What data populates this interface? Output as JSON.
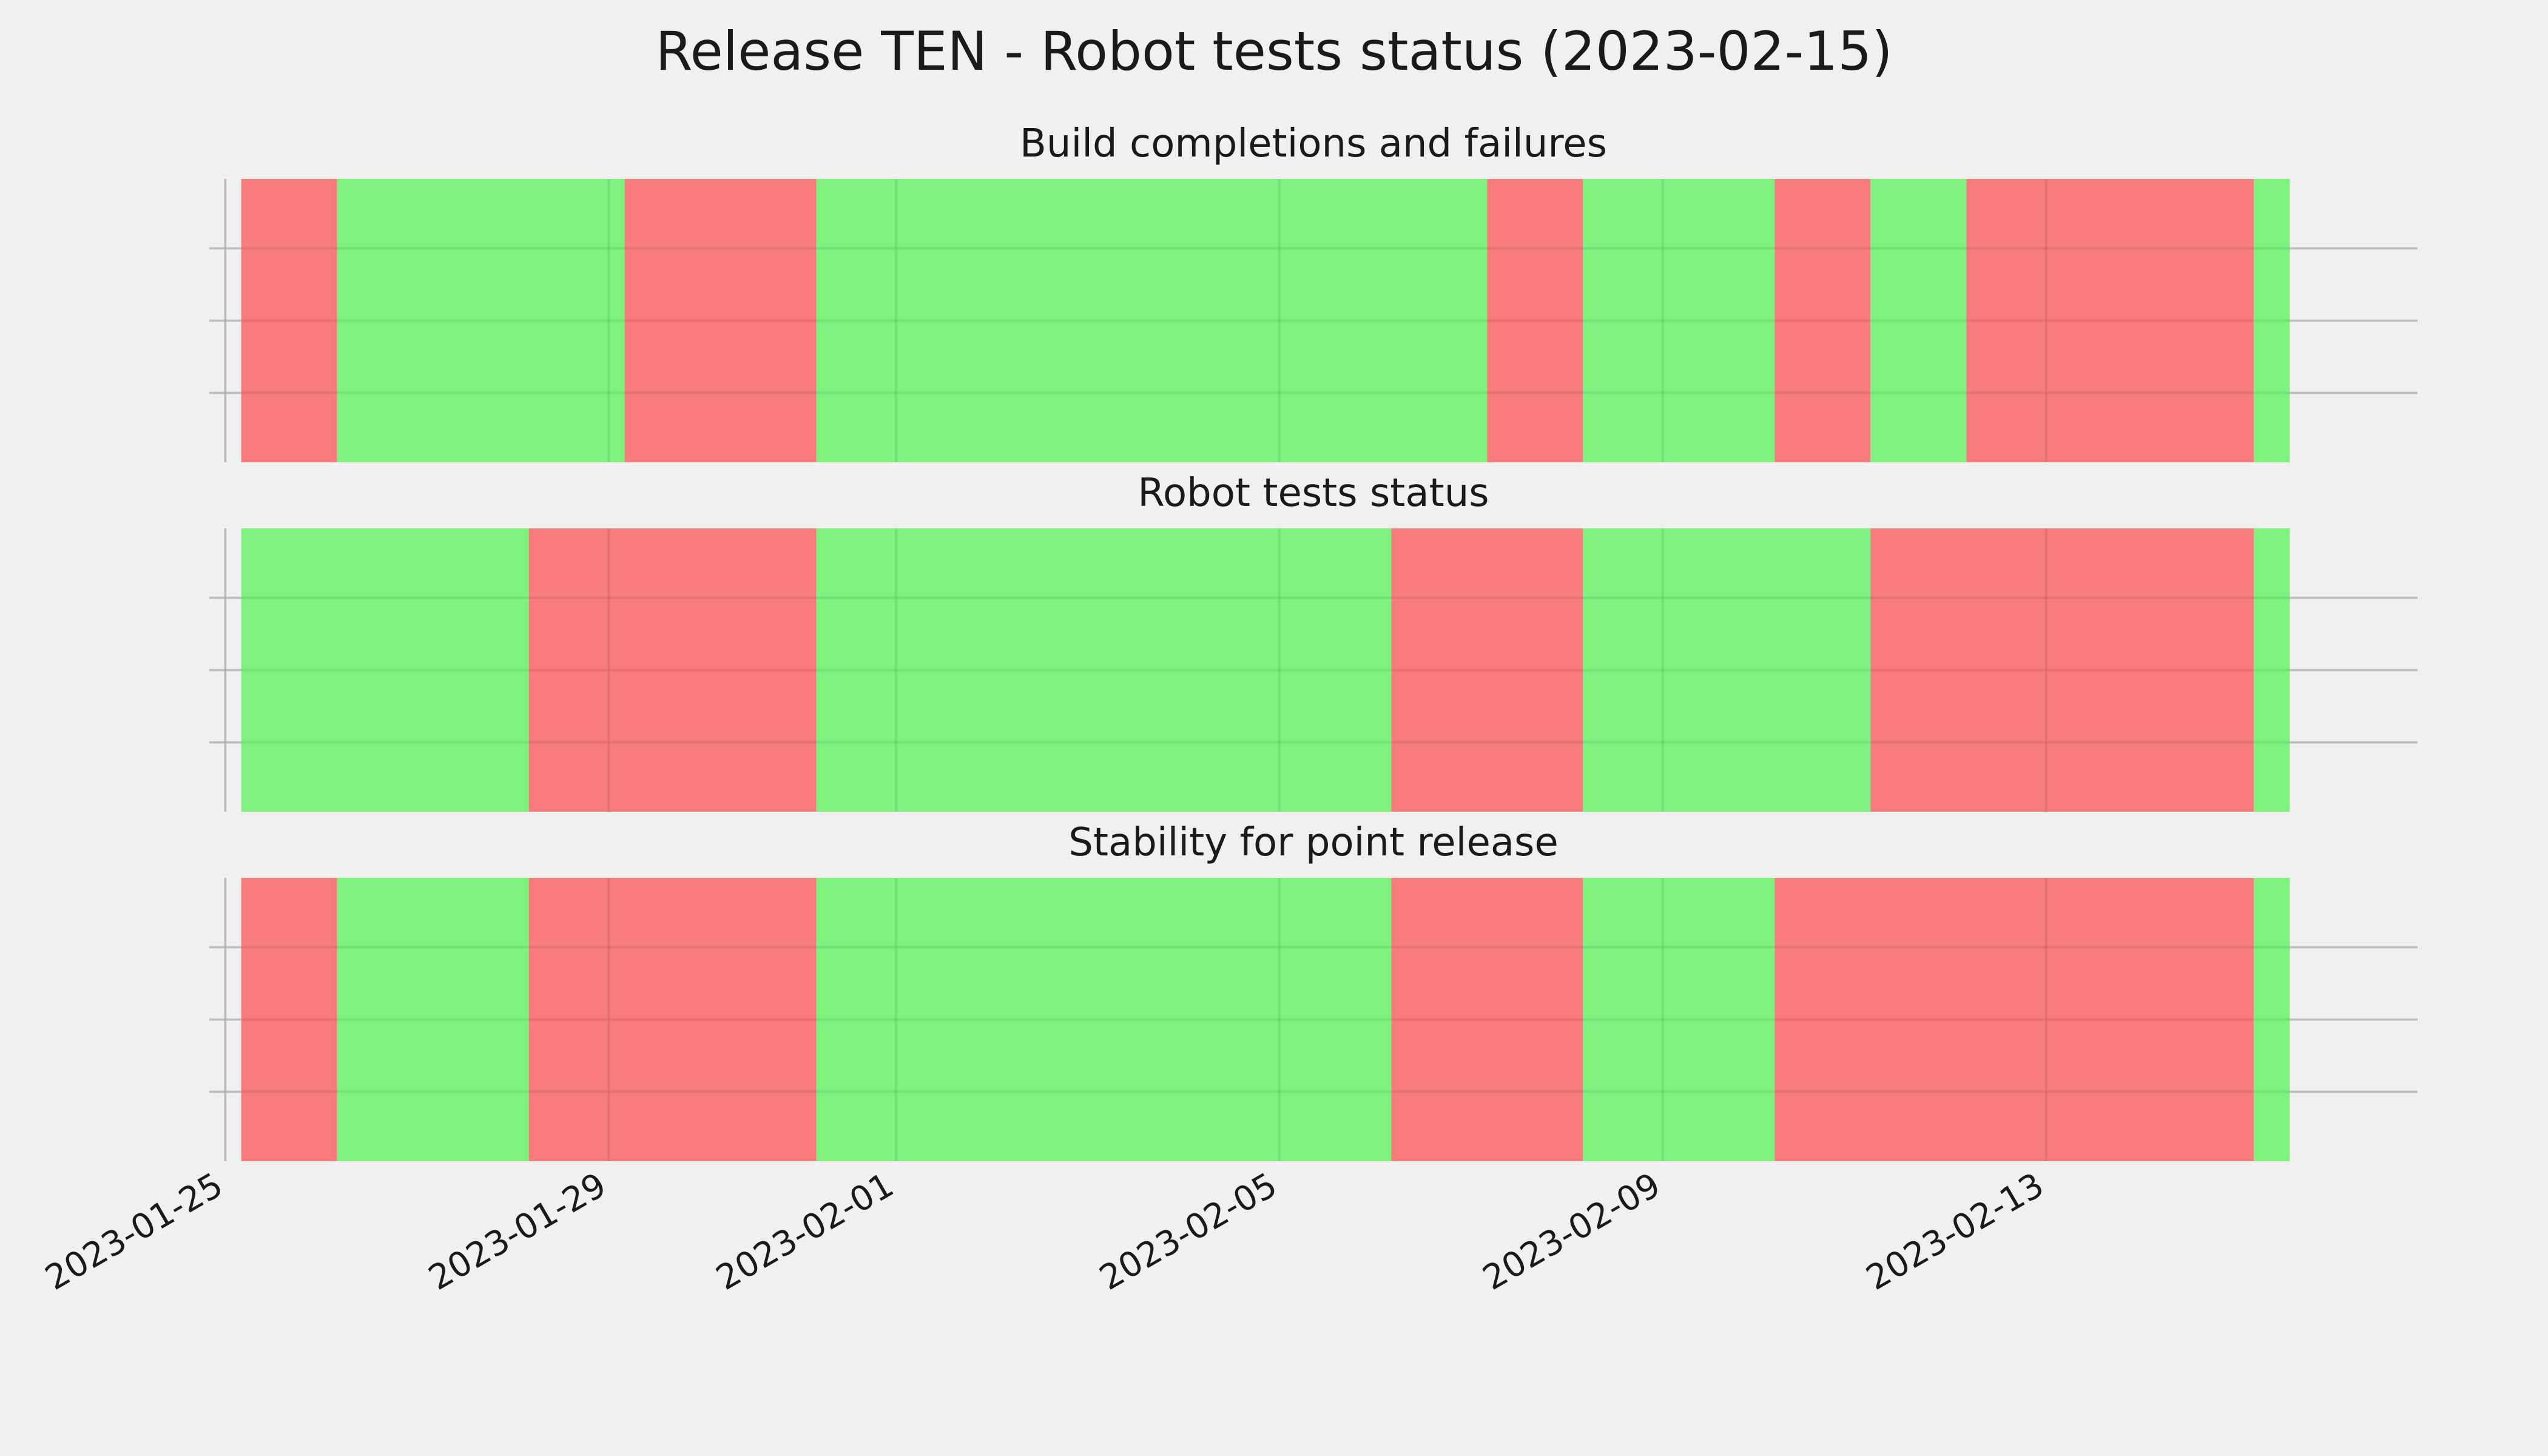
{
  "chart_data": {
    "type": "timeline",
    "title": "Release TEN - Robot tests status (2023-02-15)",
    "x_range": [
      "2023-01-24T20:00",
      "2023-02-16T21:00"
    ],
    "x_ticks": [
      "2023-01-25",
      "2023-01-29",
      "2023-02-01",
      "2023-02-05",
      "2023-02-09",
      "2023-02-13"
    ],
    "colors": {
      "pass": "#77f077",
      "fail": "#f87575",
      "background": "#f0f0f0",
      "grid": "#c9c9c9"
    },
    "grid": true,
    "panels": [
      {
        "title": "Build completions and failures",
        "segments": [
          {
            "start": "2023-01-25T04:00",
            "end": "2023-01-26T04:00",
            "status": "fail"
          },
          {
            "start": "2023-01-26T04:00",
            "end": "2023-01-29T04:00",
            "status": "pass"
          },
          {
            "start": "2023-01-29T04:00",
            "end": "2023-01-31T04:00",
            "status": "fail"
          },
          {
            "start": "2023-01-31T04:00",
            "end": "2023-02-07T04:00",
            "status": "pass"
          },
          {
            "start": "2023-02-07T04:00",
            "end": "2023-02-08T04:00",
            "status": "fail"
          },
          {
            "start": "2023-02-08T04:00",
            "end": "2023-02-10T04:00",
            "status": "pass"
          },
          {
            "start": "2023-02-10T04:00",
            "end": "2023-02-11T04:00",
            "status": "fail"
          },
          {
            "start": "2023-02-11T04:00",
            "end": "2023-02-12T04:00",
            "status": "pass"
          },
          {
            "start": "2023-02-12T04:00",
            "end": "2023-02-15T04:00",
            "status": "fail"
          },
          {
            "start": "2023-02-15T04:00",
            "end": "2023-02-15T13:00",
            "status": "pass"
          }
        ]
      },
      {
        "title": "Robot tests status",
        "segments": [
          {
            "start": "2023-01-25T04:00",
            "end": "2023-01-28T04:00",
            "status": "pass"
          },
          {
            "start": "2023-01-28T04:00",
            "end": "2023-01-31T04:00",
            "status": "fail"
          },
          {
            "start": "2023-01-31T04:00",
            "end": "2023-02-06T04:00",
            "status": "pass"
          },
          {
            "start": "2023-02-06T04:00",
            "end": "2023-02-08T04:00",
            "status": "fail"
          },
          {
            "start": "2023-02-08T04:00",
            "end": "2023-02-11T04:00",
            "status": "pass"
          },
          {
            "start": "2023-02-11T04:00",
            "end": "2023-02-15T04:00",
            "status": "fail"
          },
          {
            "start": "2023-02-15T04:00",
            "end": "2023-02-15T13:00",
            "status": "pass"
          }
        ]
      },
      {
        "title": "Stability for point release",
        "segments": [
          {
            "start": "2023-01-25T04:00",
            "end": "2023-01-26T04:00",
            "status": "fail"
          },
          {
            "start": "2023-01-26T04:00",
            "end": "2023-01-28T04:00",
            "status": "pass"
          },
          {
            "start": "2023-01-28T04:00",
            "end": "2023-01-31T04:00",
            "status": "fail"
          },
          {
            "start": "2023-01-31T04:00",
            "end": "2023-02-06T04:00",
            "status": "pass"
          },
          {
            "start": "2023-02-06T04:00",
            "end": "2023-02-08T04:00",
            "status": "fail"
          },
          {
            "start": "2023-02-08T04:00",
            "end": "2023-02-10T04:00",
            "status": "pass"
          },
          {
            "start": "2023-02-10T04:00",
            "end": "2023-02-15T04:00",
            "status": "fail"
          },
          {
            "start": "2023-02-15T04:00",
            "end": "2023-02-15T13:00",
            "status": "pass"
          }
        ]
      }
    ]
  }
}
